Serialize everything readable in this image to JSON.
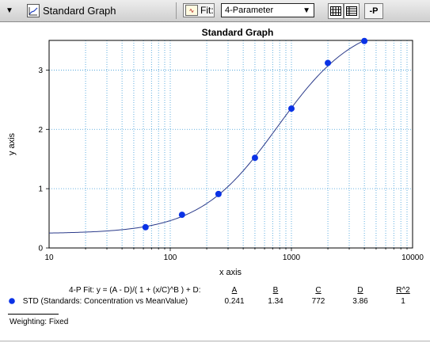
{
  "toolbar": {
    "title": "Standard Graph",
    "fit_label": "Fit:",
    "fit_value": "4-Parameter",
    "p_label": "-P"
  },
  "icons": {
    "collapse": "triangle-down-icon",
    "graph": "graph-document-icon",
    "fit": "curve-fit-icon",
    "grid": "grid-view-icon",
    "list": "list-view-icon"
  },
  "colors": {
    "point": "#0a32e6",
    "curve": "#2a3a8a",
    "grid": "#3a9bd8"
  },
  "chart_data": {
    "type": "scatter",
    "title": "Standard Graph",
    "xlabel": "x axis",
    "ylabel": "y axis",
    "x_scale": "log",
    "xlim": [
      10,
      10000
    ],
    "ylim": [
      0,
      3.5
    ],
    "x_ticks": [
      "10",
      "100",
      "1000",
      "10000"
    ],
    "y_ticks": [
      "0",
      "1",
      "2",
      "3"
    ],
    "grid": true,
    "series": [
      {
        "name": "STD (Standards: Concentration vs MeanValue)",
        "x": [
          62.5,
          125,
          250,
          500,
          1000,
          2000,
          4000
        ],
        "y": [
          0.35,
          0.56,
          0.91,
          1.52,
          2.35,
          3.12,
          3.49
        ]
      }
    ],
    "fit": {
      "A": 0.241,
      "B": 1.34,
      "C": 772,
      "D": 3.86
    }
  },
  "fit_table": {
    "equation": "4-P Fit: y = (A - D)/( 1 + (x/C)^B ) + D:",
    "headers": [
      "A",
      "B",
      "C",
      "D",
      "R^2"
    ],
    "row_label": "STD (Standards: Concentration vs MeanValue)",
    "values": [
      "0.241",
      "1.34",
      "772",
      "3.86",
      "1"
    ]
  },
  "weighting": "Weighting: Fixed"
}
